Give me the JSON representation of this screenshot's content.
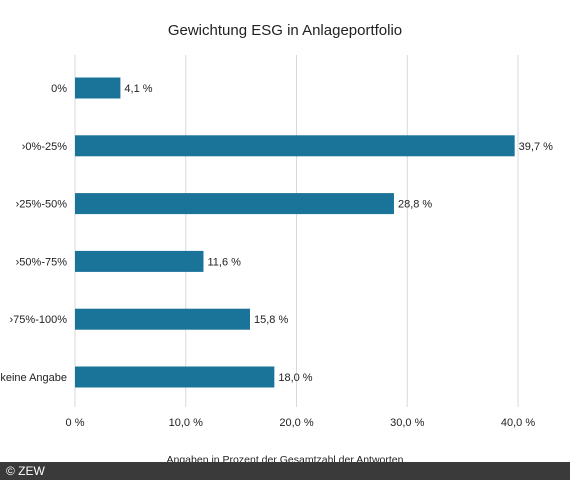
{
  "chart_data": {
    "type": "bar",
    "orientation": "horizontal",
    "title": "Gewichtung ESG in Anlageportfolio",
    "categories": [
      "0%",
      "›0%-25%",
      "›25%-50%",
      "›50%-75%",
      "›75%-100%",
      "keine Angabe"
    ],
    "values": [
      4.1,
      39.7,
      28.8,
      11.6,
      15.8,
      18.0
    ],
    "value_labels": [
      "4,1 %",
      "39,7 %",
      "28,8 %",
      "11,6 %",
      "15,8 %",
      "18,0 %"
    ],
    "xlim": [
      0,
      40
    ],
    "xticks": [
      0,
      10,
      20,
      30,
      40
    ],
    "xtick_labels": [
      "0 %",
      "10,0 %",
      "20,0 %",
      "30,0 %",
      "40,0 %"
    ],
    "xlabel": "Angaben in Prozent der Gesamtzahl der Antworten",
    "ylabel": "",
    "grid": "vertical",
    "bar_color": "#1a7399",
    "grid_color": "#d9d9d9"
  },
  "footer": {
    "copyright": "© ZEW",
    "background_color": "#3a3a3a"
  }
}
